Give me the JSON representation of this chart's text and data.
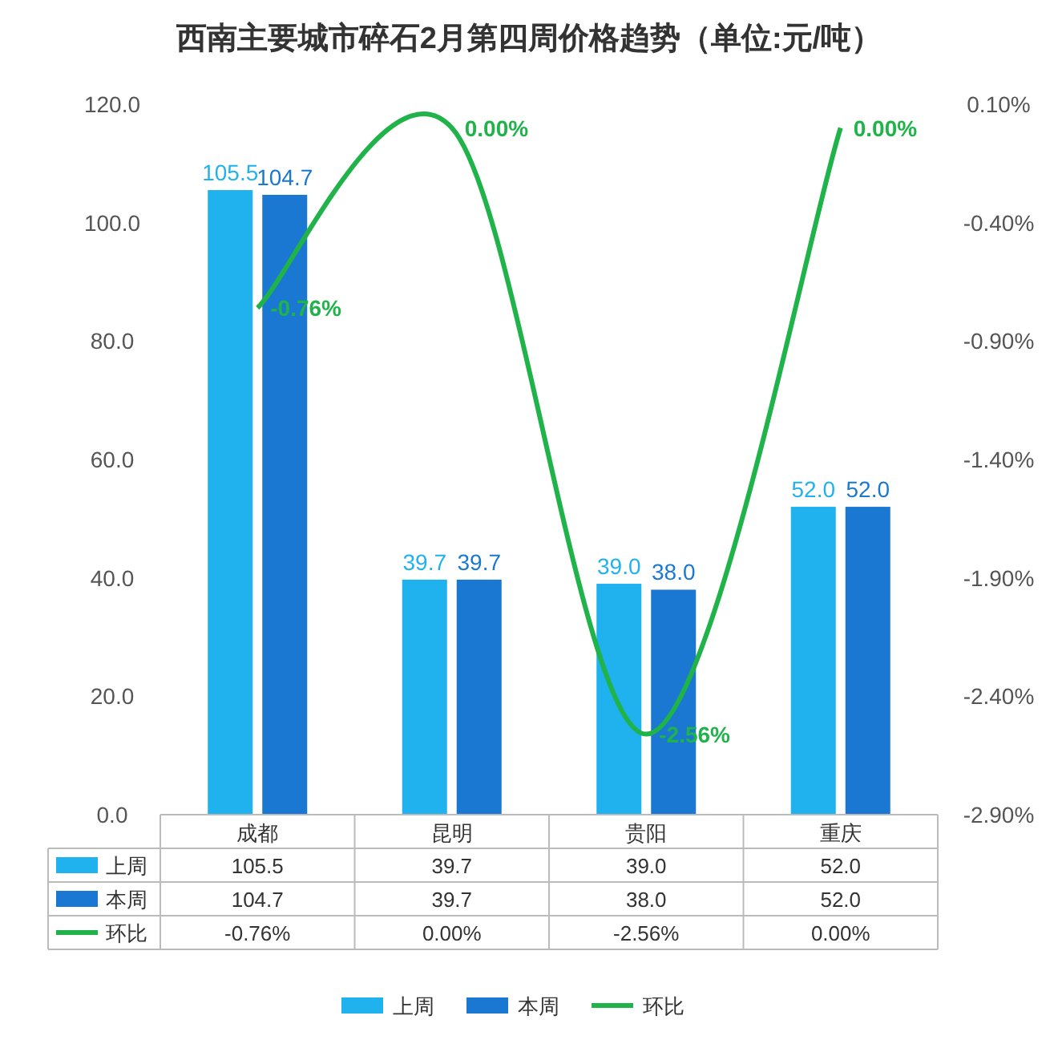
{
  "chart_data": {
    "type": "bar",
    "title": "西南主要城市碎石2月第四周价格趋势（单位:元/吨）",
    "categories": [
      "成都",
      "昆明",
      "贵阳",
      "重庆"
    ],
    "series": [
      {
        "name": "上周",
        "color": "#1fb2ee",
        "values": [
          105.5,
          39.7,
          39.0,
          52.0
        ],
        "value_labels": [
          "105.5",
          "39.7",
          "39.0",
          "52.0"
        ]
      },
      {
        "name": "本周",
        "color": "#1a78d2",
        "values": [
          104.7,
          39.7,
          38.0,
          52.0
        ],
        "value_labels": [
          "104.7",
          "39.7",
          "38.0",
          "52.0"
        ]
      },
      {
        "name": "环比",
        "type": "line",
        "axis": "y2",
        "color": "#1fb34a",
        "values": [
          -0.76,
          0.0,
          -2.56,
          0.0
        ],
        "value_labels": [
          "-0.76%",
          "0.00%",
          "-2.56%",
          "0.00%"
        ]
      }
    ],
    "ylim": [
      0,
      120
    ],
    "yticks": [
      {
        "value": 0,
        "label": "0.0"
      },
      {
        "value": 20,
        "label": "20.0"
      },
      {
        "value": 40,
        "label": "40.0"
      },
      {
        "value": 60,
        "label": "60.0"
      },
      {
        "value": 80,
        "label": "80.0"
      },
      {
        "value": 100,
        "label": "100.0"
      },
      {
        "value": 120,
        "label": "120.0"
      }
    ],
    "y2lim": [
      -2.9,
      0.1
    ],
    "y2ticks": [
      {
        "value": -2.9,
        "label": "-2.90%"
      },
      {
        "value": -2.4,
        "label": "-2.40%"
      },
      {
        "value": -1.9,
        "label": "-1.90%"
      },
      {
        "value": -1.4,
        "label": "-1.40%"
      },
      {
        "value": -0.9,
        "label": "-0.90%"
      },
      {
        "value": -0.4,
        "label": "-0.40%"
      },
      {
        "value": 0.1,
        "label": "0.10%"
      }
    ],
    "grid": false,
    "legend": "bottom"
  }
}
